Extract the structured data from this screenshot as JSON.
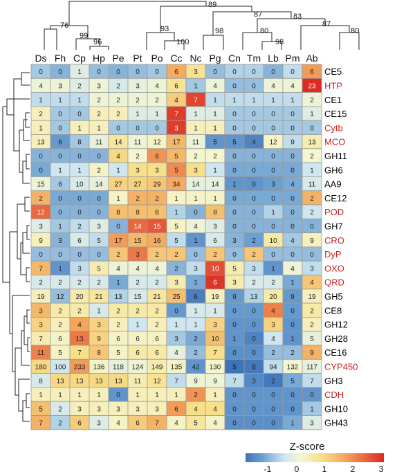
{
  "chart_data": {
    "type": "heatmap",
    "title": "",
    "legend_title": "Z-score",
    "legend_ticks": [
      "-1",
      "0",
      "1",
      "2",
      "3"
    ],
    "color_scale": [
      "#3f73b8",
      "#f5f6cf",
      "#dc2b22"
    ],
    "dendrogram_labels": [
      "89",
      "87",
      "83",
      "76",
      "99",
      "96",
      "93",
      "100",
      "98",
      "80",
      "98",
      "87",
      "80"
    ],
    "columns": [
      "Ds",
      "Fh",
      "Cp",
      "Hp",
      "Pe",
      "Pt",
      "Po",
      "Cc",
      "Nc",
      "Pg",
      "Cn",
      "Tm",
      "Lb",
      "Pm",
      "Ab"
    ],
    "rows": [
      {
        "label": "CE5",
        "label_color": "#000000",
        "values": [
          "0",
          "0",
          "1",
          "0",
          "0",
          "0",
          "0",
          "6",
          "3",
          "0",
          "0",
          "0",
          "0",
          "0",
          "6"
        ],
        "z": [
          -0.6,
          -0.8,
          -0.1,
          -0.7,
          -0.8,
          -0.7,
          -0.6,
          1.7,
          0.8,
          -0.7,
          -0.5,
          -0.5,
          -0.8,
          -0.4,
          1.9
        ]
      },
      {
        "label": "HTP",
        "label_color": "#cc2222",
        "values": [
          "4",
          "3",
          "2",
          "3",
          "2",
          "3",
          "4",
          "6",
          "1",
          "4",
          "0",
          "0",
          "4",
          "4",
          "23"
        ],
        "z": [
          0.1,
          0.1,
          -0.1,
          0.1,
          -0.2,
          0.0,
          0.1,
          0.8,
          -0.6,
          0.1,
          -0.7,
          -0.7,
          0.1,
          0.1,
          3.4
        ]
      },
      {
        "label": "CE1",
        "label_color": "#000000",
        "values": [
          "1",
          "1",
          "1",
          "2",
          "2",
          "2",
          "2",
          "4",
          "7",
          "1",
          "1",
          "1",
          "1",
          "1",
          "2"
        ],
        "z": [
          -0.4,
          -0.4,
          -0.4,
          0.1,
          0.1,
          0.1,
          0.1,
          1.2,
          2.9,
          -0.4,
          -0.4,
          -0.4,
          -0.4,
          -0.4,
          0.1
        ]
      },
      {
        "label": "CE15",
        "label_color": "#000000",
        "values": [
          "2",
          "0",
          "0",
          "2",
          "2",
          "1",
          "1",
          "7",
          "1",
          "1",
          "0",
          "0",
          "0",
          "0",
          "1"
        ],
        "z": [
          0.4,
          -0.6,
          -0.6,
          0.4,
          0.4,
          -0.1,
          -0.1,
          3.0,
          -0.1,
          -0.1,
          -0.6,
          -0.6,
          -0.6,
          -0.6,
          -0.1
        ]
      },
      {
        "label": "Cytb",
        "label_color": "#cc2222",
        "values": [
          "1",
          "0",
          "1",
          "1",
          "0",
          "0",
          "0",
          "3",
          "1",
          "1",
          "0",
          "0",
          "0",
          "0",
          "0"
        ],
        "z": [
          0.4,
          -0.6,
          0.4,
          0.4,
          -0.6,
          -0.6,
          -0.6,
          3.0,
          0.4,
          0.4,
          -0.6,
          -0.6,
          -0.6,
          -0.6,
          -0.6
        ]
      },
      {
        "label": "MCO",
        "label_color": "#cc2222",
        "values": [
          "13",
          "6",
          "8",
          "11",
          "14",
          "11",
          "12",
          "17",
          "11",
          "5",
          "5",
          "4",
          "12",
          "9",
          "13"
        ],
        "z": [
          0.4,
          -1.1,
          -0.6,
          0.0,
          0.7,
          0.1,
          0.3,
          1.5,
          0.1,
          -1.2,
          -1.2,
          -1.5,
          0.3,
          -0.4,
          0.5
        ]
      },
      {
        "label": "GH11",
        "label_color": "#000000",
        "values": [
          "0",
          "0",
          "0",
          "0",
          "4",
          "2",
          "6",
          "5",
          "2",
          "2",
          "0",
          "0",
          "0",
          "0",
          "2"
        ],
        "z": [
          -0.8,
          -0.8,
          -0.8,
          -0.8,
          1.0,
          0.2,
          2.0,
          1.5,
          0.2,
          0.2,
          -0.8,
          -0.8,
          -0.8,
          -0.8,
          0.2
        ]
      },
      {
        "label": "GH6",
        "label_color": "#000000",
        "values": [
          "0",
          "1",
          "1",
          "2",
          "1",
          "3",
          "3",
          "5",
          "3",
          "1",
          "0",
          "0",
          "0",
          "0",
          "1"
        ],
        "z": [
          -0.9,
          -0.3,
          -0.3,
          0.3,
          -0.3,
          0.9,
          0.9,
          2.1,
          0.9,
          -0.3,
          -0.9,
          -0.9,
          -0.9,
          -0.9,
          -0.3
        ]
      },
      {
        "label": "AA9",
        "label_color": "#000000",
        "values": [
          "15",
          "6",
          "10",
          "14",
          "27",
          "27",
          "29",
          "34",
          "14",
          "14",
          "1",
          "0",
          "3",
          "4",
          "11"
        ],
        "z": [
          0.1,
          -0.6,
          -0.2,
          0.0,
          1.1,
          1.1,
          1.3,
          1.7,
          0.0,
          0.0,
          -1.2,
          -1.2,
          -1.0,
          -0.9,
          -0.2
        ]
      },
      {
        "label": "CE12",
        "label_color": "#000000",
        "values": [
          "2",
          "0",
          "0",
          "0",
          "1",
          "2",
          "2",
          "1",
          "1",
          "1",
          "0",
          "0",
          "0",
          "0",
          "2"
        ],
        "z": [
          1.6,
          -0.9,
          -0.9,
          -0.9,
          0.3,
          1.6,
          1.6,
          0.3,
          0.3,
          0.3,
          -0.9,
          -0.9,
          -0.9,
          -0.9,
          1.6
        ]
      },
      {
        "label": "POD",
        "label_color": "#cc2222",
        "values": [
          "12",
          "0",
          "0",
          "0",
          "8",
          "8",
          "8",
          "1",
          "0",
          "8",
          "0",
          "0",
          "1",
          "0",
          "2"
        ],
        "z": [
          2.5,
          -0.8,
          -0.8,
          -0.8,
          1.4,
          1.4,
          1.4,
          -0.5,
          -0.8,
          1.4,
          -0.8,
          -0.8,
          -0.5,
          -0.8,
          -0.3
        ]
      },
      {
        "label": "GH7",
        "label_color": "#000000",
        "values": [
          "3",
          "1",
          "2",
          "3",
          "0",
          "14",
          "15",
          "5",
          "4",
          "3",
          "0",
          "0",
          "0",
          "0",
          "0"
        ],
        "z": [
          -0.1,
          -0.6,
          -0.4,
          -0.1,
          -0.8,
          2.5,
          2.7,
          0.3,
          0.1,
          -0.1,
          -0.8,
          -0.8,
          -0.8,
          -0.8,
          -0.8
        ]
      },
      {
        "label": "CRO",
        "label_color": "#cc2222",
        "values": [
          "9",
          "3",
          "6",
          "5",
          "17",
          "15",
          "16",
          "5",
          "1",
          "6",
          "3",
          "2",
          "10",
          "4",
          "9"
        ],
        "z": [
          0.4,
          -0.8,
          -0.2,
          -0.4,
          1.9,
          1.5,
          1.7,
          -0.4,
          -1.2,
          -0.2,
          -0.8,
          -1.0,
          0.6,
          -0.6,
          0.4
        ]
      },
      {
        "label": "DyP",
        "label_color": "#cc2222",
        "values": [
          "0",
          "0",
          "0",
          "0",
          "2",
          "3",
          "2",
          "2",
          "0",
          "2",
          "0",
          "2",
          "0",
          "0",
          "0"
        ],
        "z": [
          -0.7,
          -0.7,
          -0.7,
          -0.7,
          1.3,
          2.3,
          1.3,
          1.3,
          -0.7,
          1.3,
          -0.7,
          1.3,
          -0.7,
          -0.7,
          -0.7
        ]
      },
      {
        "label": "OXO",
        "label_color": "#cc2222",
        "values": [
          "7",
          "1",
          "3",
          "5",
          "4",
          "4",
          "4",
          "2",
          "3",
          "10",
          "5",
          "3",
          "1",
          "4",
          "3"
        ],
        "z": [
          1.5,
          -1.2,
          -0.4,
          0.5,
          0.1,
          0.1,
          0.1,
          -0.8,
          -0.4,
          2.8,
          0.5,
          -0.4,
          -1.2,
          0.1,
          -0.4
        ]
      },
      {
        "label": "QRD",
        "label_color": "#cc2222",
        "values": [
          "2",
          "2",
          "2",
          "2",
          "1",
          "2",
          "2",
          "3",
          "1",
          "6",
          "3",
          "2",
          "2",
          "1",
          "4"
        ],
        "z": [
          -0.2,
          -0.2,
          -0.2,
          -0.2,
          -0.9,
          -0.2,
          -0.2,
          0.5,
          -0.9,
          3.1,
          0.5,
          -0.2,
          -0.2,
          -0.9,
          1.3
        ]
      },
      {
        "label": "GH5",
        "label_color": "#000000",
        "values": [
          "19",
          "12",
          "20",
          "21",
          "13",
          "15",
          "21",
          "25",
          "6",
          "19",
          "9",
          "13",
          "20",
          "9",
          "19"
        ],
        "z": [
          0.4,
          -0.7,
          0.6,
          0.7,
          -0.5,
          -0.2,
          0.7,
          1.4,
          -1.6,
          0.4,
          -1.1,
          -0.5,
          0.6,
          -1.1,
          0.4
        ]
      },
      {
        "label": "CE8",
        "label_color": "#000000",
        "values": [
          "3",
          "2",
          "2",
          "1",
          "2",
          "2",
          "2",
          "0",
          "1",
          "1",
          "0",
          "0",
          "4",
          "0",
          "2"
        ],
        "z": [
          1.5,
          0.6,
          0.6,
          -0.2,
          0.6,
          0.6,
          0.6,
          -1.1,
          -0.2,
          -0.2,
          -1.1,
          -1.1,
          2.2,
          -1.1,
          0.6
        ]
      },
      {
        "label": "GH12",
        "label_color": "#000000",
        "values": [
          "3",
          "2",
          "4",
          "3",
          "2",
          "1",
          "2",
          "1",
          "1",
          "3",
          "0",
          "0",
          "3",
          "0",
          "2"
        ],
        "z": [
          1.1,
          0.4,
          1.8,
          1.1,
          0.4,
          -0.3,
          0.4,
          -0.3,
          -0.3,
          1.1,
          -1.2,
          -1.2,
          1.1,
          -1.2,
          0.4
        ]
      },
      {
        "label": "GH28",
        "label_color": "#000000",
        "values": [
          "7",
          "6",
          "13",
          "9",
          "6",
          "6",
          "6",
          "3",
          "2",
          "10",
          "1",
          "0",
          "4",
          "1",
          "5"
        ],
        "z": [
          0.5,
          0.3,
          2.3,
          1.1,
          0.3,
          0.3,
          0.3,
          -0.6,
          -0.9,
          1.4,
          -1.2,
          -1.5,
          -0.3,
          -1.2,
          0.0
        ]
      },
      {
        "label": "CE16",
        "label_color": "#000000",
        "values": [
          "11",
          "5",
          "7",
          "8",
          "5",
          "6",
          "6",
          "4",
          "2",
          "7",
          "0",
          "0",
          "2",
          "2",
          "9"
        ],
        "z": [
          2.2,
          0.3,
          0.9,
          1.3,
          0.3,
          0.6,
          0.6,
          0.0,
          -0.7,
          0.9,
          -1.3,
          -1.3,
          -0.7,
          -0.7,
          1.6
        ]
      },
      {
        "label": "CYP450",
        "label_color": "#cc2222",
        "values": [
          "180",
          "100",
          "233",
          "136",
          "118",
          "124",
          "149",
          "135",
          "42",
          "130",
          "5",
          "8",
          "94",
          "132",
          "117"
        ],
        "z": [
          1.0,
          -0.3,
          1.9,
          0.3,
          0.0,
          0.1,
          0.5,
          0.3,
          -1.2,
          0.2,
          -1.8,
          -1.7,
          -0.4,
          0.2,
          0.0
        ]
      },
      {
        "label": "GH3",
        "label_color": "#000000",
        "values": [
          "8",
          "13",
          "13",
          "13",
          "13",
          "11",
          "12",
          "7",
          "9",
          "9",
          "7",
          "3",
          "2",
          "5",
          "7"
        ],
        "z": [
          -0.2,
          1.0,
          1.0,
          1.0,
          1.0,
          0.5,
          0.8,
          -0.4,
          0.1,
          0.1,
          -0.4,
          -1.4,
          -1.7,
          -0.9,
          -0.4
        ]
      },
      {
        "label": "CDH",
        "label_color": "#cc2222",
        "values": [
          "1",
          "1",
          "1",
          "1",
          "0",
          "1",
          "1",
          "1",
          "2",
          "1",
          "0",
          "0",
          "0",
          "0",
          "0"
        ],
        "z": [
          0.4,
          0.4,
          0.4,
          0.4,
          -1.2,
          0.4,
          0.4,
          0.4,
          2.0,
          0.4,
          -1.2,
          -1.2,
          -1.2,
          -1.2,
          -1.2
        ]
      },
      {
        "label": "GH10",
        "label_color": "#000000",
        "values": [
          "5",
          "2",
          "3",
          "3",
          "3",
          "3",
          "3",
          "6",
          "4",
          "4",
          "0",
          "0",
          "0",
          "0",
          "1"
        ],
        "z": [
          1.4,
          -0.2,
          0.4,
          0.4,
          0.4,
          0.4,
          0.4,
          1.9,
          0.9,
          0.9,
          -1.2,
          -1.2,
          -1.2,
          -1.2,
          -0.6
        ]
      },
      {
        "label": "GH43",
        "label_color": "#000000",
        "values": [
          "7",
          "2",
          "6",
          "3",
          "4",
          "6",
          "7",
          "4",
          "5",
          "4",
          "0",
          "0",
          "0",
          "1",
          "3"
        ],
        "z": [
          1.6,
          -0.5,
          1.2,
          -0.1,
          0.3,
          1.2,
          1.6,
          0.3,
          0.7,
          0.3,
          -1.3,
          -1.3,
          -1.3,
          -0.9,
          -0.1
        ]
      }
    ]
  }
}
